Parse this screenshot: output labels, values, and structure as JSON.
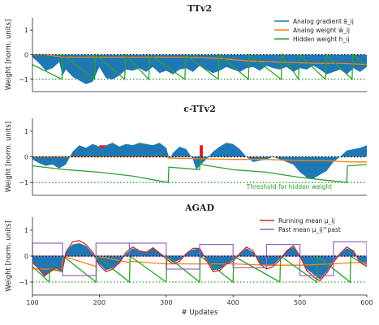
{
  "chart_data": [
    {
      "type": "area",
      "title": "TTv2",
      "xlabel": "",
      "ylabel": "Weight [norm. units]",
      "xlim": [
        100,
        600
      ],
      "ylim": [
        -1.5,
        1.5
      ],
      "yticks": [
        -1,
        0,
        1
      ],
      "reference_lines": [
        {
          "y": 0,
          "style": "dotted",
          "color": "#000000"
        },
        {
          "y": -1,
          "style": "dotted",
          "color": "#2ca02c"
        }
      ],
      "legend": {
        "position": "top-right",
        "entries": [
          "Analog gradient $\\tilde{a}_{ij}$",
          "Analog weight $\\tilde{w}_{ij}$",
          "Hidden weight $h_{ij}$"
        ]
      },
      "legend_display": [
        "Analog gradient ã_ij",
        "Analog weight w̃_ij",
        "Hidden weight h_ij"
      ],
      "series": [
        {
          "name": "Analog gradient $\\tilde{a}_{ij}$",
          "type": "area",
          "color": "#1f77b4",
          "x": [
            100,
            110,
            120,
            130,
            140,
            145,
            150,
            160,
            170,
            180,
            190,
            200,
            210,
            220,
            230,
            240,
            250,
            260,
            270,
            280,
            290,
            300,
            310,
            320,
            330,
            340,
            350,
            360,
            370,
            380,
            390,
            400,
            410,
            420,
            430,
            440,
            450,
            460,
            470,
            480,
            490,
            500,
            510,
            520,
            530,
            540,
            550,
            560,
            570,
            580,
            590,
            600
          ],
          "values": [
            -0.1,
            -0.35,
            -0.65,
            -0.55,
            -0.3,
            -0.85,
            -0.6,
            -0.9,
            -1.05,
            -1.2,
            -1.1,
            -0.5,
            -0.95,
            -1.0,
            -0.85,
            -0.6,
            -0.65,
            -0.55,
            -0.7,
            -0.5,
            -0.75,
            -0.65,
            -0.8,
            -0.6,
            -0.55,
            -0.7,
            -0.45,
            -0.6,
            -0.75,
            -0.65,
            -0.5,
            -0.6,
            -0.7,
            -0.55,
            -0.5,
            -0.65,
            -0.45,
            -0.55,
            -0.6,
            -0.5,
            -0.7,
            -0.55,
            -0.6,
            -0.45,
            -0.6,
            -0.8,
            -0.7,
            -0.6,
            -0.8,
            -0.55,
            -0.7,
            -0.5
          ]
        },
        {
          "name": "Analog weight $\\tilde{w}_{ij}$",
          "type": "line",
          "color": "#ff7f0e",
          "x": [
            100,
            120,
            145,
            200,
            270,
            330,
            380,
            420,
            470,
            520,
            560,
            600
          ],
          "values": [
            0.0,
            0.0,
            -0.1,
            -0.1,
            -0.1,
            -0.1,
            -0.15,
            -0.25,
            -0.3,
            -0.35,
            -0.35,
            -0.4
          ]
        },
        {
          "name": "Hidden weight $h_{ij}$",
          "type": "line",
          "color": "#2ca02c",
          "x": [
            100,
            144,
            145,
            193,
            194,
            238,
            239,
            274,
            275,
            328,
            329,
            378,
            379,
            423,
            424,
            472,
            473,
            498,
            499,
            538,
            539,
            578,
            579,
            600
          ],
          "values": [
            -0.4,
            -1.0,
            0.0,
            -1.0,
            0.0,
            -1.0,
            0.0,
            -1.0,
            0.0,
            -1.0,
            0.0,
            -1.0,
            0.0,
            -1.0,
            0.0,
            -1.0,
            0.0,
            -1.0,
            0.0,
            -1.0,
            0.0,
            -1.0,
            0.0,
            -0.45
          ]
        }
      ]
    },
    {
      "type": "area",
      "title": "c-TTv2",
      "xlabel": "",
      "ylabel": "Weight [norm. units]",
      "xlim": [
        100,
        600
      ],
      "ylim": [
        -1.5,
        1.5
      ],
      "yticks": [
        -1,
        0,
        1
      ],
      "reference_lines": [
        {
          "y": 0,
          "style": "dotted",
          "color": "#000000"
        },
        {
          "y": -1,
          "style": "dotted",
          "color": "#2ca02c"
        }
      ],
      "annotations": [
        {
          "text": "Threshold for hidden weight",
          "color": "#2ca02c",
          "x": 420,
          "y": -1.25
        }
      ],
      "highlighted_spans": [
        {
          "x": [
            200,
            210
          ],
          "color": "#d62728"
        },
        {
          "x": [
            350,
            355
          ],
          "color": "#d62728"
        }
      ],
      "series": [
        {
          "name": "Analog gradient",
          "type": "area",
          "color": "#1f77b4",
          "x": [
            100,
            110,
            120,
            130,
            140,
            150,
            160,
            170,
            180,
            190,
            200,
            205,
            210,
            220,
            230,
            240,
            250,
            260,
            270,
            280,
            290,
            300,
            305,
            310,
            320,
            330,
            340,
            345,
            350,
            360,
            370,
            380,
            390,
            400,
            410,
            420,
            430,
            440,
            450,
            460,
            470,
            480,
            490,
            500,
            510,
            520,
            530,
            540,
            550,
            560,
            570,
            580,
            590,
            600
          ],
          "values": [
            -0.1,
            -0.25,
            -0.35,
            -0.3,
            -0.45,
            -0.3,
            0.2,
            0.45,
            0.35,
            0.5,
            0.4,
            0.3,
            0.45,
            0.55,
            0.4,
            0.5,
            0.45,
            0.55,
            0.5,
            0.45,
            0.55,
            0.35,
            -0.1,
            0.15,
            0.4,
            0.3,
            -0.1,
            -0.5,
            -0.35,
            -0.1,
            0.2,
            0.4,
            0.55,
            0.5,
            0.3,
            0.0,
            -0.2,
            -0.15,
            -0.1,
            0.0,
            -0.1,
            -0.2,
            -0.3,
            -0.6,
            -0.8,
            -0.85,
            -0.7,
            -0.55,
            -0.2,
            0.0,
            0.25,
            0.3,
            0.35,
            0.45
          ]
        },
        {
          "name": "Analog weight",
          "type": "line",
          "color": "#ff7f0e",
          "x": [
            100,
            300,
            305,
            400,
            450,
            500,
            540,
            575,
            600
          ],
          "values": [
            0.0,
            0.0,
            -0.05,
            -0.1,
            -0.1,
            -0.15,
            -0.15,
            -0.2,
            -0.2
          ]
        },
        {
          "name": "Hidden weight",
          "type": "line",
          "color": "#2ca02c",
          "x": [
            100,
            150,
            200,
            250,
            303,
            304,
            350,
            351,
            352,
            400,
            450,
            500,
            570,
            571,
            600
          ],
          "values": [
            -0.35,
            -0.5,
            -0.6,
            -0.75,
            -1.0,
            -0.4,
            -0.5,
            0.0,
            -0.3,
            -0.5,
            -0.6,
            -0.8,
            -1.0,
            -0.35,
            -0.3
          ]
        }
      ]
    },
    {
      "type": "area",
      "title": "AGAD",
      "xlabel": "# Updates",
      "ylabel": "Weight [norm. units]",
      "xlim": [
        100,
        600
      ],
      "ylim": [
        -1.5,
        1.5
      ],
      "yticks": [
        -1,
        0,
        1
      ],
      "xticks": [
        100,
        200,
        300,
        400,
        500,
        600
      ],
      "reference_lines": [
        {
          "y": 0,
          "style": "dotted",
          "color": "#000000"
        },
        {
          "y": -1,
          "style": "dotted",
          "color": "#2ca02c"
        }
      ],
      "legend": {
        "position": "top-right",
        "entries": [
          "Running mean $\\mu_{ij}$",
          "Past mean $\\mu_{ij}^{\\rm past}$"
        ]
      },
      "legend_display": [
        "Running mean μ_ij",
        "Past mean μ_ij^past"
      ],
      "series": [
        {
          "name": "Analog gradient",
          "type": "area",
          "color": "#1f77b4",
          "x": [
            100,
            110,
            118,
            125,
            135,
            145,
            150,
            160,
            170,
            180,
            190,
            200,
            210,
            220,
            230,
            240,
            250,
            260,
            270,
            280,
            290,
            300,
            310,
            320,
            330,
            340,
            350,
            360,
            370,
            380,
            390,
            400,
            410,
            420,
            430,
            440,
            450,
            460,
            470,
            480,
            490,
            500,
            510,
            520,
            530,
            540,
            550,
            560,
            570,
            580,
            590,
            600
          ],
          "values": [
            -0.2,
            -0.55,
            -0.8,
            -0.65,
            -0.5,
            -0.6,
            0.2,
            0.45,
            0.5,
            0.4,
            0.1,
            -0.3,
            -0.55,
            -0.45,
            -0.3,
            0.1,
            0.3,
            0.2,
            0.15,
            0.35,
            0.15,
            -0.05,
            -0.25,
            -0.15,
            0.1,
            0.25,
            0.3,
            -0.1,
            -0.55,
            -0.5,
            -0.3,
            -0.15,
            0.1,
            0.3,
            0.15,
            -0.3,
            -0.4,
            -0.35,
            -0.1,
            0.2,
            0.35,
            0.0,
            -0.5,
            -0.7,
            -0.9,
            -0.6,
            -0.2,
            0.1,
            0.3,
            0.2,
            -0.2,
            -0.35
          ]
        },
        {
          "name": "Analog weight",
          "type": "line",
          "color": "#ff7f0e",
          "x": [
            100,
            144,
            145,
            195,
            196,
            245,
            246,
            300,
            350,
            400,
            450,
            500,
            550,
            580,
            600
          ],
          "values": [
            -0.5,
            -0.5,
            0.0,
            -0.4,
            0.0,
            -0.25,
            -0.2,
            -0.3,
            -0.3,
            -0.3,
            -0.35,
            -0.35,
            -0.3,
            -0.25,
            -0.25
          ]
        },
        {
          "name": "Hidden weight",
          "type": "line",
          "color": "#2ca02c",
          "x": [
            100,
            125,
            126,
            145,
            146,
            195,
            196,
            245,
            246,
            300,
            301,
            350,
            351,
            400,
            401,
            470,
            471,
            525,
            526,
            575,
            576,
            600
          ],
          "values": [
            -0.4,
            -1.0,
            -0.5,
            -0.6,
            0.0,
            -1.0,
            0.0,
            -1.0,
            0.0,
            -1.0,
            0.0,
            -1.0,
            0.0,
            -1.0,
            0.0,
            -1.0,
            0.0,
            -1.0,
            0.0,
            -1.0,
            0.0,
            -0.4
          ]
        },
        {
          "name": "Running mean $\\mu_{ij}$",
          "type": "line",
          "color": "#d62728",
          "x": [
            100,
            110,
            118,
            125,
            135,
            145,
            150,
            160,
            170,
            180,
            190,
            200,
            210,
            220,
            230,
            240,
            250,
            260,
            270,
            280,
            290,
            300,
            310,
            320,
            330,
            340,
            350,
            360,
            370,
            380,
            390,
            400,
            410,
            420,
            430,
            440,
            450,
            460,
            470,
            480,
            490,
            500,
            510,
            520,
            530,
            540,
            550,
            560,
            570,
            580,
            590,
            600
          ],
          "values": [
            -0.25,
            -0.5,
            -0.75,
            -0.6,
            -0.45,
            -0.55,
            0.15,
            0.55,
            0.6,
            0.45,
            0.15,
            -0.35,
            -0.6,
            -0.5,
            -0.25,
            0.15,
            0.35,
            0.2,
            0.15,
            0.3,
            0.1,
            -0.1,
            -0.3,
            -0.2,
            0.1,
            0.3,
            0.3,
            -0.15,
            -0.6,
            -0.55,
            -0.3,
            -0.2,
            0.1,
            0.35,
            0.2,
            -0.3,
            -0.5,
            -0.4,
            -0.15,
            0.2,
            0.4,
            0.0,
            -0.55,
            -0.8,
            -0.95,
            -0.65,
            -0.25,
            0.1,
            0.35,
            0.2,
            -0.25,
            -0.4
          ]
        },
        {
          "name": "Past mean $\\mu_{ij}^{\\rm past}$",
          "type": "step",
          "color": "#9467bd",
          "x": [
            100,
            145,
            195,
            245,
            300,
            350,
            400,
            450,
            500,
            550,
            600
          ],
          "values": [
            0.5,
            -0.75,
            0.5,
            0.5,
            -0.5,
            0.45,
            -0.45,
            0.45,
            -0.75,
            0.55,
            0.55
          ]
        }
      ]
    }
  ]
}
